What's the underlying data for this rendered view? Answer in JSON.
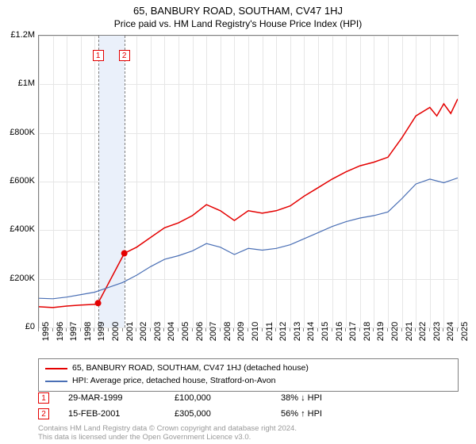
{
  "title": "65, BANBURY ROAD, SOUTHAM, CV47 1HJ",
  "subtitle": "Price paid vs. HM Land Registry's House Price Index (HPI)",
  "chart": {
    "type": "line",
    "background_color": "#ffffff",
    "border_color": "#808080",
    "grid_color": "#e6e6e6",
    "xlim": [
      1995,
      2025
    ],
    "ylim": [
      0,
      1200000
    ],
    "yticks": [
      {
        "v": 0,
        "label": "£0"
      },
      {
        "v": 200000,
        "label": "£200K"
      },
      {
        "v": 400000,
        "label": "£400K"
      },
      {
        "v": 600000,
        "label": "£600K"
      },
      {
        "v": 800000,
        "label": "£800K"
      },
      {
        "v": 1000000,
        "label": "£1M"
      },
      {
        "v": 1200000,
        "label": "£1.2M"
      }
    ],
    "xticks": [
      1995,
      1996,
      1997,
      1998,
      1999,
      2000,
      2001,
      2002,
      2003,
      2004,
      2005,
      2006,
      2007,
      2008,
      2009,
      2010,
      2011,
      2012,
      2013,
      2014,
      2015,
      2016,
      2017,
      2018,
      2019,
      2020,
      2021,
      2022,
      2023,
      2024,
      2025
    ],
    "band": {
      "from": 1999.24,
      "to": 2001.12,
      "color": "#eaf0fa"
    },
    "event_vlines": [
      1999.24,
      2001.12
    ],
    "series": [
      {
        "name": "price_paid",
        "label": "65, BANBURY ROAD, SOUTHAM, CV47 1HJ (detached house)",
        "color": "#e40000",
        "line_width": 1.5,
        "data": [
          [
            1995,
            85000
          ],
          [
            1996,
            82000
          ],
          [
            1997,
            88000
          ],
          [
            1998,
            92000
          ],
          [
            1999,
            95000
          ],
          [
            1999.24,
            100000
          ],
          [
            2001.12,
            305000
          ],
          [
            2002,
            330000
          ],
          [
            2003,
            370000
          ],
          [
            2004,
            410000
          ],
          [
            2005,
            430000
          ],
          [
            2006,
            460000
          ],
          [
            2007,
            505000
          ],
          [
            2008,
            480000
          ],
          [
            2009,
            440000
          ],
          [
            2010,
            480000
          ],
          [
            2011,
            470000
          ],
          [
            2012,
            480000
          ],
          [
            2013,
            500000
          ],
          [
            2014,
            540000
          ],
          [
            2015,
            575000
          ],
          [
            2016,
            610000
          ],
          [
            2017,
            640000
          ],
          [
            2018,
            665000
          ],
          [
            2019,
            680000
          ],
          [
            2020,
            700000
          ],
          [
            2021,
            780000
          ],
          [
            2022,
            870000
          ],
          [
            2023,
            905000
          ],
          [
            2023.5,
            870000
          ],
          [
            2024,
            920000
          ],
          [
            2024.5,
            880000
          ],
          [
            2025,
            940000
          ]
        ],
        "markers": [
          {
            "x": 1999.24,
            "y": 100000,
            "r": 4
          },
          {
            "x": 2001.12,
            "y": 305000,
            "r": 4
          }
        ]
      },
      {
        "name": "hpi",
        "label": "HPI: Average price, detached house, Stratford-on-Avon",
        "color": "#4a6fb5",
        "line_width": 1.2,
        "data": [
          [
            1995,
            120000
          ],
          [
            1996,
            118000
          ],
          [
            1997,
            125000
          ],
          [
            1998,
            135000
          ],
          [
            1999,
            145000
          ],
          [
            2000,
            165000
          ],
          [
            2001,
            185000
          ],
          [
            2002,
            215000
          ],
          [
            2003,
            250000
          ],
          [
            2004,
            280000
          ],
          [
            2005,
            295000
          ],
          [
            2006,
            315000
          ],
          [
            2007,
            345000
          ],
          [
            2008,
            330000
          ],
          [
            2009,
            300000
          ],
          [
            2010,
            325000
          ],
          [
            2011,
            318000
          ],
          [
            2012,
            325000
          ],
          [
            2013,
            340000
          ],
          [
            2014,
            365000
          ],
          [
            2015,
            390000
          ],
          [
            2016,
            415000
          ],
          [
            2017,
            435000
          ],
          [
            2018,
            450000
          ],
          [
            2019,
            460000
          ],
          [
            2020,
            475000
          ],
          [
            2021,
            530000
          ],
          [
            2022,
            590000
          ],
          [
            2023,
            610000
          ],
          [
            2024,
            595000
          ],
          [
            2025,
            615000
          ]
        ]
      }
    ],
    "chart_markers": [
      {
        "n": "1",
        "x": 1999.24,
        "color": "#e40000"
      },
      {
        "n": "2",
        "x": 2001.12,
        "color": "#e40000"
      }
    ]
  },
  "legend": {
    "rows": [
      {
        "color": "#e40000",
        "label": "65, BANBURY ROAD, SOUTHAM, CV47 1HJ (detached house)"
      },
      {
        "color": "#4a6fb5",
        "label": "HPI: Average price, detached house, Stratford-on-Avon"
      }
    ]
  },
  "events": [
    {
      "n": "1",
      "color": "#e40000",
      "date": "29-MAR-1999",
      "price": "£100,000",
      "delta": "38% ↓ HPI"
    },
    {
      "n": "2",
      "color": "#e40000",
      "date": "15-FEB-2001",
      "price": "£305,000",
      "delta": "56% ↑ HPI"
    }
  ],
  "footer_line1": "Contains HM Land Registry data © Crown copyright and database right 2024.",
  "footer_line2": "This data is licensed under the Open Government Licence v3.0."
}
